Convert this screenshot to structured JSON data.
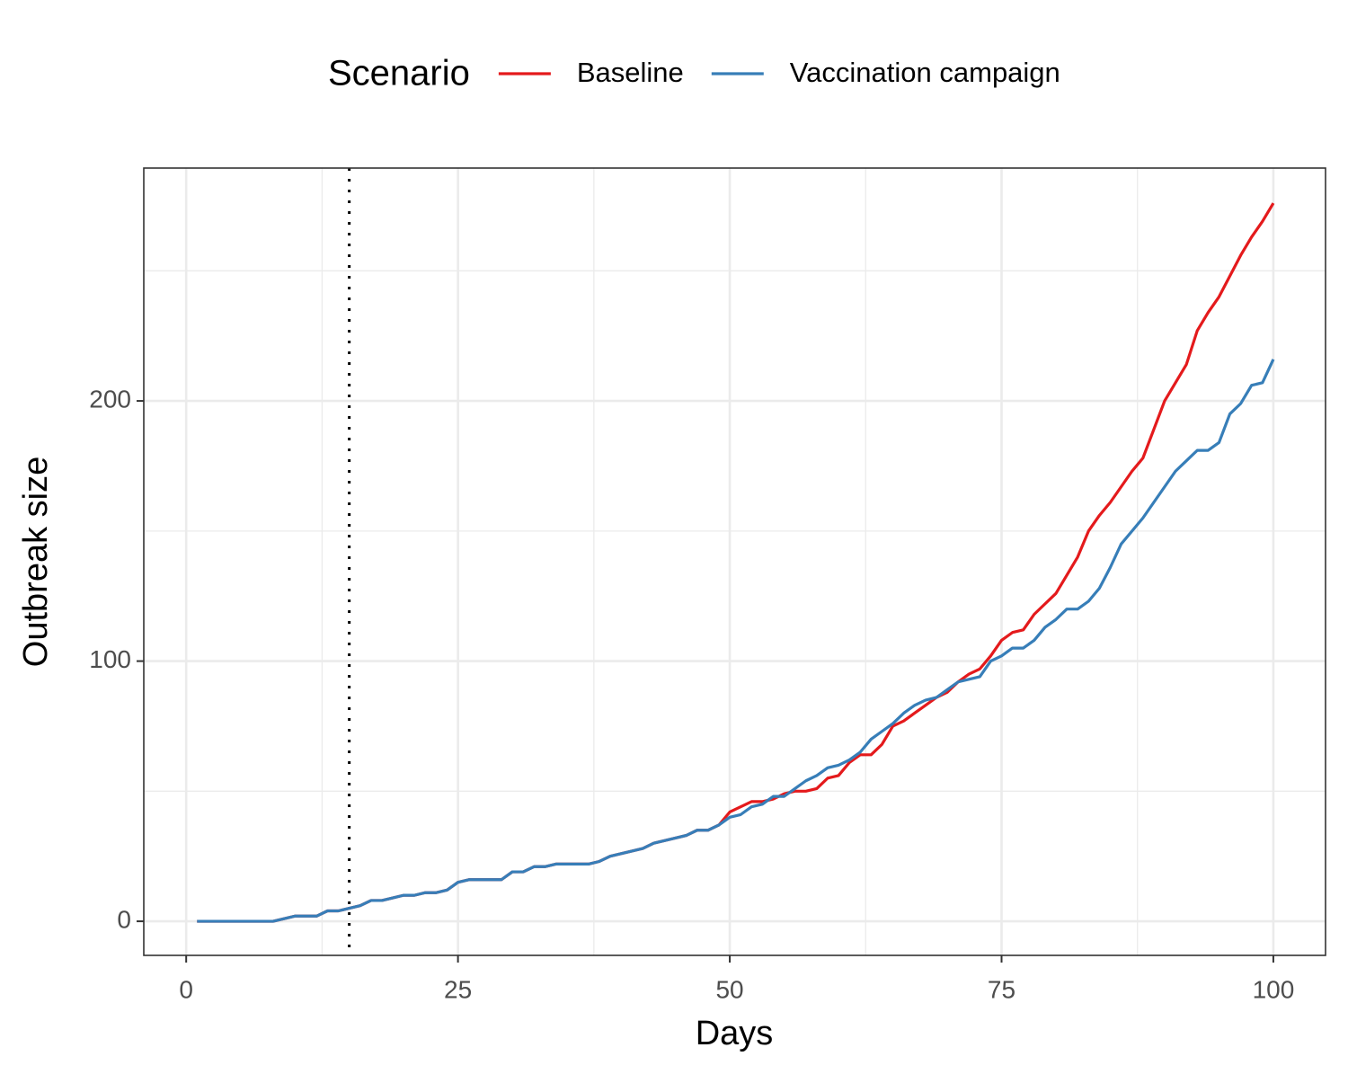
{
  "chart_data": {
    "type": "line",
    "legend_title": "Scenario",
    "x_label": "Days",
    "y_label": "Outbreak size",
    "x": [
      1,
      2,
      3,
      4,
      5,
      6,
      7,
      8,
      9,
      10,
      11,
      12,
      13,
      14,
      15,
      16,
      17,
      18,
      19,
      20,
      21,
      22,
      23,
      24,
      25,
      26,
      27,
      28,
      29,
      30,
      31,
      32,
      33,
      34,
      35,
      36,
      37,
      38,
      39,
      40,
      41,
      42,
      43,
      44,
      45,
      46,
      47,
      48,
      49,
      50,
      51,
      52,
      53,
      54,
      55,
      56,
      57,
      58,
      59,
      60,
      61,
      62,
      63,
      64,
      65,
      66,
      67,
      68,
      69,
      70,
      71,
      72,
      73,
      74,
      75,
      76,
      77,
      78,
      79,
      80,
      81,
      82,
      83,
      84,
      85,
      86,
      87,
      88,
      89,
      90,
      91,
      92,
      93,
      94,
      95,
      96,
      97,
      98,
      99,
      100
    ],
    "series": [
      {
        "name": "Baseline",
        "color": "#e41a1c",
        "values": [
          0,
          0,
          0,
          0,
          0,
          0,
          0,
          0,
          1,
          2,
          2,
          2,
          4,
          4,
          5,
          6,
          8,
          8,
          9,
          10,
          10,
          11,
          11,
          12,
          15,
          16,
          16,
          16,
          16,
          19,
          19,
          21,
          21,
          22,
          22,
          22,
          22,
          23,
          25,
          26,
          27,
          28,
          30,
          31,
          32,
          33,
          35,
          35,
          37,
          42,
          44,
          46,
          46,
          47,
          49,
          50,
          50,
          51,
          55,
          56,
          61,
          64,
          64,
          68,
          75,
          77,
          80,
          83,
          86,
          88,
          92,
          95,
          97,
          102,
          108,
          111,
          112,
          118,
          122,
          126,
          133,
          140,
          150,
          156,
          161,
          167,
          173,
          178,
          189,
          200,
          207,
          214,
          227,
          234,
          240,
          248,
          256,
          263,
          269,
          276
        ]
      },
      {
        "name": "Vaccination campaign",
        "color": "#377eb8",
        "values": [
          0,
          0,
          0,
          0,
          0,
          0,
          0,
          0,
          1,
          2,
          2,
          2,
          4,
          4,
          5,
          6,
          8,
          8,
          9,
          10,
          10,
          11,
          11,
          12,
          15,
          16,
          16,
          16,
          16,
          19,
          19,
          21,
          21,
          22,
          22,
          22,
          22,
          23,
          25,
          26,
          27,
          28,
          30,
          31,
          32,
          33,
          35,
          35,
          37,
          40,
          41,
          44,
          45,
          48,
          48,
          51,
          54,
          56,
          59,
          60,
          62,
          65,
          70,
          73,
          76,
          80,
          83,
          85,
          86,
          89,
          92,
          93,
          94,
          100,
          102,
          105,
          105,
          108,
          113,
          116,
          120,
          120,
          123,
          128,
          136,
          145,
          150,
          155,
          161,
          167,
          173,
          177,
          181,
          181,
          184,
          195,
          199,
          206,
          207,
          216
        ]
      }
    ],
    "vline": 15,
    "xlim": [
      -3.9,
      104.8
    ],
    "xticks": [
      0,
      25,
      50,
      75,
      100
    ],
    "ylim": [
      -13.1,
      289.5
    ],
    "yticks": [
      0,
      100,
      200
    ],
    "grid": true
  }
}
